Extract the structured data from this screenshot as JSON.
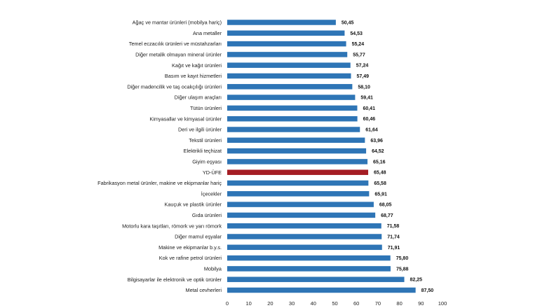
{
  "chart_data": {
    "type": "bar",
    "orientation": "horizontal",
    "title": "",
    "xlabel": "",
    "ylabel": "",
    "xlim": [
      0,
      100
    ],
    "xticks": [
      "0",
      "10",
      "20",
      "30",
      "40",
      "50",
      "60",
      "70",
      "80",
      "90",
      "100"
    ],
    "grid": false,
    "categories": [
      "Ağaç ve mantar ürünleri (mobilya hariç)",
      "Ana metaller",
      "Temel eczacılık ürünleri ve müstahzarları",
      "Diğer metalik olmayan mineral ürünler",
      "Kağıt ve kağıt ürünleri",
      "Basım ve kayıt hizmetleri",
      "Diğer madencilik ve taş ocakçılığı ürünleri",
      "Diğer ulaşım araçları",
      "Tütün ürünleri",
      "Kimyasallar ve kimyasal ürünler",
      "Deri ve ilgili ürünler",
      "Tekstil ürünleri",
      "Elektrikli teçhizat",
      "Giyim eşyası",
      "YD-ÜFE",
      "Fabrikasyon metal ürünler, makine ve ekipmanlar hariç",
      "İçecekler",
      "Kauçuk ve plastik ürünler",
      "Gıda ürünleri",
      "Motorlu kara taşıtları, römork ve yarı römork",
      "Diğer mamul eşyalar",
      "Makine ve ekipmanlar b.y.s.",
      "Kok ve rafine petrol ürünleri",
      "Mobilya",
      "Bilgisayarlar ile elektronik ve optik ürünler",
      "Metal cevherleri"
    ],
    "values": [
      50.45,
      54.53,
      55.24,
      55.77,
      57.24,
      57.49,
      58.1,
      59.41,
      60.41,
      60.46,
      61.64,
      63.96,
      64.52,
      65.16,
      65.48,
      65.58,
      65.91,
      68.05,
      68.77,
      71.58,
      71.74,
      71.91,
      75.8,
      75.88,
      82.25,
      87.5
    ],
    "value_labels": [
      "50,45",
      "54,53",
      "55,24",
      "55,77",
      "57,24",
      "57,49",
      "58,10",
      "59,41",
      "60,41",
      "60,46",
      "61,64",
      "63,96",
      "64,52",
      "65,16",
      "65,48",
      "65,58",
      "65,91",
      "68,05",
      "68,77",
      "71,58",
      "71,74",
      "71,91",
      "75,80",
      "75,88",
      "82,25",
      "87,50"
    ],
    "highlight_category": "YD-ÜFE",
    "colors": {
      "bar": "#2e75b6",
      "highlight": "#a51d24"
    }
  }
}
